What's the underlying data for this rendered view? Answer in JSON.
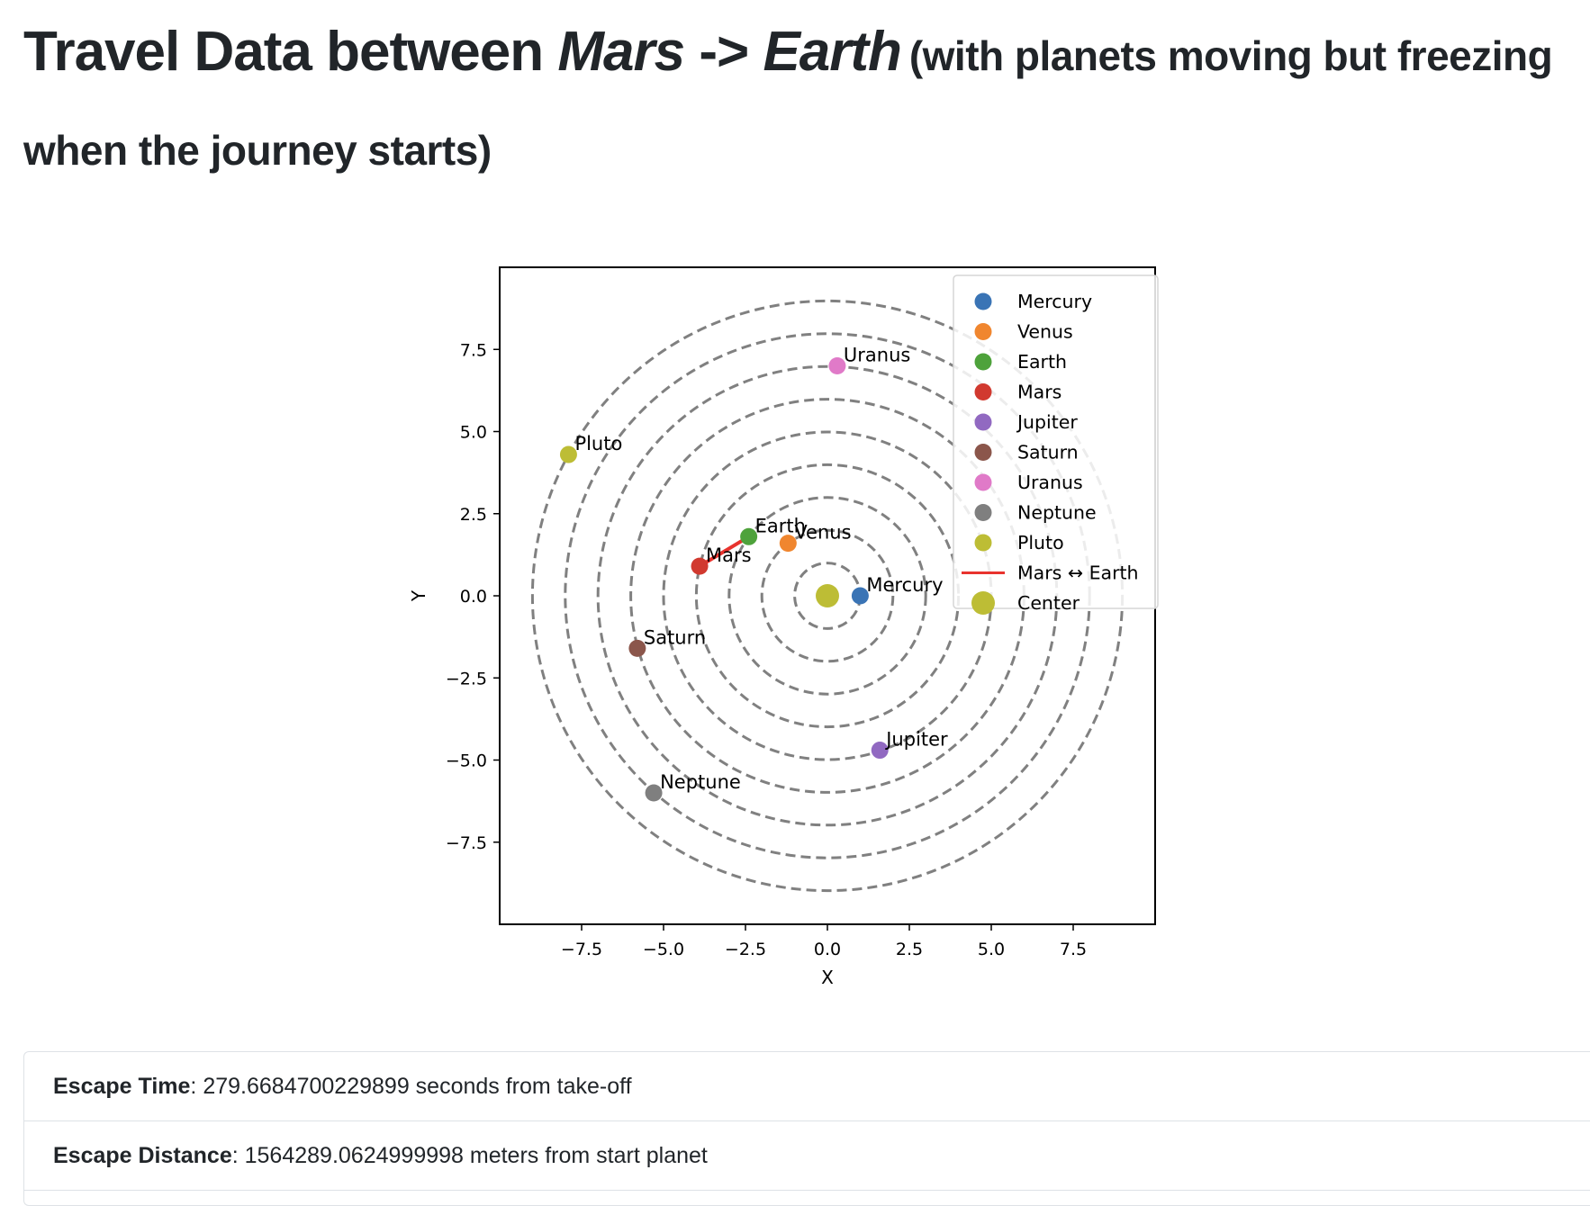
{
  "header": {
    "title_prefix": "Travel Data between ",
    "origin": "Mars",
    "arrow": " -> ",
    "destination": "Earth",
    "subtitle": "(with planets moving but freezing when the journey starts)"
  },
  "info": {
    "rows": [
      {
        "label": "Escape Time",
        "separator": ":",
        "value": "279.6684700229899 seconds from take-off"
      },
      {
        "label": "Escape Distance",
        "separator": ":",
        "value": "1564289.0624999998 meters from start planet"
      }
    ]
  },
  "chart_data": {
    "type": "scatter",
    "xlabel": "X",
    "ylabel": "Y",
    "xlim": [
      -10,
      10
    ],
    "ylim": [
      -10,
      10
    ],
    "xticks": [
      -7.5,
      -5.0,
      -2.5,
      0.0,
      2.5,
      5.0,
      7.5
    ],
    "yticks": [
      7.5,
      5.0,
      2.5,
      0.0,
      -2.5,
      -5.0,
      -7.5
    ],
    "tick_labels": [
      "−7.5",
      "−5.0",
      "−2.5",
      "0.0",
      "2.5",
      "5.0",
      "7.5"
    ],
    "y_tick_labels": [
      "7.5",
      "5.0",
      "2.5",
      "0.0",
      "−2.5",
      "−5.0",
      "−7.5"
    ],
    "grid": false,
    "legend_position": "top-right",
    "orbits": {
      "radii": [
        1,
        2,
        3,
        4,
        5,
        6,
        7,
        8,
        9
      ],
      "style": "dashed",
      "color": "#808080"
    },
    "planets": [
      {
        "name": "Mercury",
        "x": 1.0,
        "y": 0.0,
        "color": "#3a74b5"
      },
      {
        "name": "Venus",
        "x": -1.2,
        "y": 1.6,
        "color": "#f0862f"
      },
      {
        "name": "Earth",
        "x": -2.4,
        "y": 1.8,
        "color": "#4ea23b"
      },
      {
        "name": "Mars",
        "x": -3.9,
        "y": 0.9,
        "color": "#d1392f"
      },
      {
        "name": "Jupiter",
        "x": 1.6,
        "y": -4.7,
        "color": "#9169c1"
      },
      {
        "name": "Saturn",
        "x": -5.8,
        "y": -1.6,
        "color": "#8b564b"
      },
      {
        "name": "Uranus",
        "x": 0.3,
        "y": 7.0,
        "color": "#e07ac8"
      },
      {
        "name": "Neptune",
        "x": -5.3,
        "y": -6.0,
        "color": "#7f7f7f"
      },
      {
        "name": "Pluto",
        "x": -7.9,
        "y": 4.3,
        "color": "#bdbd35"
      }
    ],
    "route": {
      "name": "Mars ↔ Earth",
      "from": "Mars",
      "to": "Earth",
      "color": "#e8332e"
    },
    "center": {
      "name": "Center",
      "x": 0.0,
      "y": 0.0,
      "color": "#bdbd35"
    }
  }
}
